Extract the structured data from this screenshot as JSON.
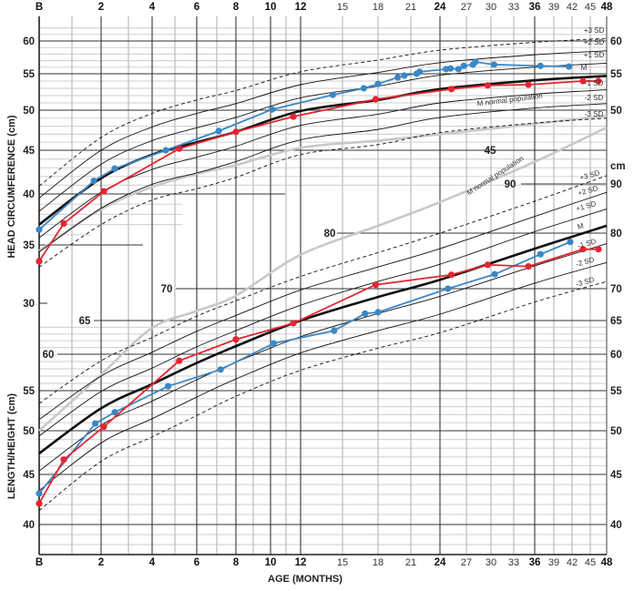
{
  "chart_data": [
    {
      "type": "line",
      "ylabel": "HEAD CIRCUMFERENCE (cm)",
      "xlabel": "AGE (MONTHS)",
      "x_ticks": [
        "B",
        "2",
        "4",
        "6",
        "8",
        "10",
        "12",
        "15",
        "18",
        "21",
        "24",
        "27",
        "30",
        "33",
        "36",
        "39",
        "42",
        "45",
        "48"
      ],
      "x_range": [
        0,
        48
      ],
      "y_ticks_left": [
        "60",
        "55",
        "50",
        "45",
        "40",
        "35",
        "30"
      ],
      "y_ticks_right": [
        "60",
        "55",
        "50"
      ],
      "inner_labels": [
        "45"
      ],
      "grid": true,
      "reference_ages": [
        0,
        2,
        4,
        6,
        8,
        12,
        18,
        24,
        36,
        48
      ],
      "reference_curves": [
        {
          "name": "+3 SD",
          "dashed": true,
          "values": [
            40.9,
            46.6,
            49.6,
            51.4,
            52.7,
            55.3,
            57.1,
            58.6,
            59.8,
            60.4
          ]
        },
        {
          "name": "+2 SD",
          "dashed": false,
          "values": [
            39.6,
            45.0,
            47.9,
            49.6,
            50.9,
            53.5,
            55.2,
            56.7,
            57.9,
            58.5
          ]
        },
        {
          "name": "+1 SD",
          "dashed": false,
          "values": [
            38.3,
            43.4,
            46.2,
            47.8,
            49.1,
            51.7,
            53.3,
            54.8,
            56.0,
            56.6
          ]
        },
        {
          "name": "M",
          "bold": true,
          "values": [
            37.0,
            41.8,
            44.5,
            46.0,
            47.3,
            49.9,
            51.4,
            52.9,
            54.1,
            54.7
          ]
        },
        {
          "name": "-1 SD",
          "dashed": false,
          "values": [
            35.7,
            40.2,
            42.8,
            44.2,
            45.5,
            48.1,
            49.5,
            51.0,
            52.2,
            52.8
          ]
        },
        {
          "name": "-2 SD",
          "dashed": false,
          "values": [
            34.4,
            38.6,
            41.1,
            42.4,
            43.7,
            46.3,
            47.6,
            49.1,
            50.3,
            50.9
          ]
        },
        {
          "name": "-3 SD",
          "dashed": true,
          "values": [
            33.1,
            37.0,
            39.4,
            40.6,
            41.9,
            44.5,
            45.7,
            47.2,
            48.4,
            49.0
          ]
        }
      ],
      "normal_curve": {
        "name": "M normal population",
        "color": "#c8c8c8",
        "values": [
          34.5,
          38.5,
          40.8,
          42.3,
          43.3,
          45.3,
          46.2,
          47.0,
          48.3,
          49.3
        ]
      },
      "series": [
        {
          "color": "#3b87c6",
          "x": [
            0,
            1.75,
            2.5,
            4.6,
            7.1,
            10.1,
            14.3,
            16.8,
            18,
            19.8,
            20.4,
            21.6,
            21.9,
            24.7,
            25.2,
            26.1,
            26.7,
            27.8,
            28.1,
            30.4,
            36.9,
            41.5
          ],
          "y": [
            36.5,
            41.5,
            42.9,
            45.0,
            47.4,
            50.1,
            52.1,
            53.0,
            53.6,
            54.5,
            54.75,
            55.0,
            55.3,
            55.7,
            55.8,
            55.7,
            56.2,
            56.4,
            56.8,
            56.4,
            56.2,
            56.1
          ]
        },
        {
          "color": "#e52530",
          "x": [
            0,
            0.75,
            2.1,
            5.2,
            8.0,
            11.5,
            17.8,
            25.3,
            29.6,
            35.1,
            43.8,
            46.5
          ],
          "y": [
            33.6,
            37.1,
            40.3,
            45.2,
            47.3,
            49.2,
            51.5,
            52.9,
            53.4,
            53.5,
            54.0,
            54.0
          ]
        }
      ]
    },
    {
      "type": "line",
      "ylabel": "LENGTH/HEIGHT (cm)",
      "xlabel": "AGE (MONTHS)",
      "x_range": [
        0,
        48
      ],
      "y_ticks_left": [
        "55",
        "50",
        "45",
        "40"
      ],
      "y_ticks_right": [
        "cm",
        "90",
        "80",
        "70",
        "65",
        "60",
        "55",
        "50",
        "45",
        "40"
      ],
      "inner_labels": [
        "90",
        "80",
        "70",
        "65",
        "60"
      ],
      "grid": true,
      "reference_ages": [
        0,
        2,
        4,
        6,
        8,
        12,
        18,
        24,
        36,
        48
      ],
      "reference_curves": [
        {
          "name": "+3 SD",
          "dashed": true,
          "values": [
            53.4,
            59.1,
            62.5,
            65.7,
            68.1,
            72.2,
            76.5,
            80.0,
            86.5,
            91.7
          ]
        },
        {
          "name": "+2 SD",
          "dashed": false,
          "values": [
            51.4,
            57.0,
            60.3,
            63.4,
            65.8,
            69.8,
            73.9,
            77.2,
            83.4,
            88.3
          ]
        },
        {
          "name": "+1 SD",
          "dashed": false,
          "values": [
            49.4,
            54.9,
            58.1,
            61.1,
            63.5,
            67.4,
            71.3,
            74.4,
            80.3,
            84.9
          ]
        },
        {
          "name": "M",
          "bold": true,
          "values": [
            47.4,
            52.8,
            55.9,
            58.8,
            61.2,
            65.0,
            68.7,
            71.6,
            77.2,
            81.5
          ]
        },
        {
          "name": "-1 SD",
          "dashed": false,
          "values": [
            45.4,
            50.7,
            53.7,
            56.5,
            58.9,
            62.6,
            66.1,
            68.8,
            74.1,
            78.1
          ]
        },
        {
          "name": "-2 SD",
          "dashed": false,
          "values": [
            43.4,
            48.6,
            51.5,
            54.2,
            56.6,
            60.2,
            63.5,
            66.0,
            71.0,
            74.7
          ]
        },
        {
          "name": "-3 SD",
          "dashed": true,
          "values": [
            41.4,
            46.5,
            49.3,
            51.9,
            54.3,
            57.8,
            60.9,
            63.2,
            67.9,
            71.3
          ]
        }
      ],
      "normal_curve": {
        "name": "M normal population",
        "color": "#c8c8c8",
        "values": [
          50.0,
          57.2,
          63.9,
          66.5,
          68.9,
          76.1,
          81.5,
          86.3,
          94.5,
          101.5
        ]
      },
      "series": [
        {
          "color": "#3b87c6",
          "x": [
            0,
            1.8,
            2.5,
            4.7,
            7.2,
            10.2,
            14.4,
            16.9,
            18,
            24.9,
            30.5,
            36.9,
            41.7
          ],
          "y": [
            43.1,
            50.9,
            52.3,
            55.6,
            57.9,
            61.6,
            63.5,
            66.1,
            66.3,
            70.0,
            72.6,
            76.2,
            78.4
          ]
        },
        {
          "color": "#e52530",
          "x": [
            0,
            0.75,
            2.1,
            5.2,
            8.0,
            11.5,
            17.8,
            25.3,
            29.6,
            35.1,
            43.8,
            46.5
          ],
          "y": [
            42.1,
            46.7,
            50.5,
            59.1,
            62.2,
            64.6,
            70.7,
            72.5,
            74.3,
            74.0,
            77.1,
            77.1
          ]
        }
      ]
    }
  ]
}
